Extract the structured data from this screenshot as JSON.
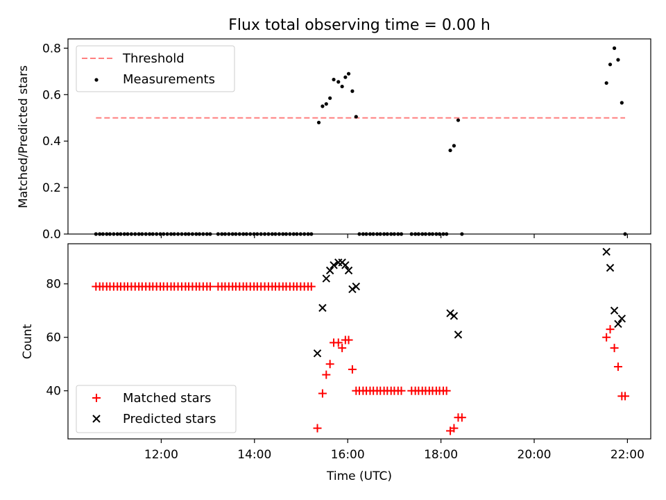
{
  "chart_data": {
    "title": "Flux total observing time = 0.00 h",
    "xlabel": "Time (UTC)",
    "x_ticks": [
      "12:00",
      "14:00",
      "16:00",
      "18:00",
      "20:00",
      "22:00"
    ],
    "x_tick_hours": [
      12,
      14,
      16,
      18,
      20,
      22
    ],
    "xlim_hours": [
      10.0,
      22.5
    ],
    "panels": [
      {
        "id": "ratio",
        "type": "scatter",
        "ylabel": "Matched/Predicted stars",
        "ylim": [
          0,
          0.84
        ],
        "yticks": [
          0.0,
          0.2,
          0.4,
          0.6,
          0.8
        ],
        "ytick_labels": [
          "0.0",
          "0.2",
          "0.4",
          "0.6",
          "0.8"
        ],
        "legend": {
          "placement": "top-left",
          "entries": [
            "Threshold",
            "Measurements"
          ]
        },
        "threshold": {
          "name": "Threshold",
          "value": 0.5,
          "x_range_hours": [
            10.6,
            21.95
          ],
          "color": "#ff7f7f"
        },
        "series": [
          {
            "name": "Measurements",
            "color": "#000000",
            "marker": "dot",
            "x_hours": [
              10.6,
              10.68,
              10.75,
              10.83,
              10.9,
              10.98,
              11.06,
              11.13,
              11.21,
              11.28,
              11.36,
              11.44,
              11.52,
              11.59,
              11.67,
              11.75,
              11.82,
              11.9,
              11.98,
              12.05,
              12.13,
              12.21,
              12.28,
              12.36,
              12.44,
              12.52,
              12.59,
              12.67,
              12.75,
              12.82,
              12.9,
              12.98,
              13.05,
              13.22,
              13.3,
              13.37,
              13.45,
              13.53,
              13.6,
              13.68,
              13.76,
              13.83,
              13.91,
              13.99,
              14.06,
              14.14,
              14.22,
              14.3,
              14.38,
              14.45,
              14.53,
              14.61,
              14.68,
              14.76,
              14.84,
              14.91,
              14.99,
              15.07,
              15.15,
              15.22,
              15.38,
              15.46,
              15.54,
              15.62,
              15.7,
              15.8,
              15.88,
              15.95,
              16.02,
              16.1,
              16.18,
              16.25,
              16.33,
              16.4,
              16.48,
              16.55,
              16.63,
              16.7,
              16.78,
              16.85,
              16.93,
              17.0,
              17.08,
              17.15,
              17.37,
              17.45,
              17.52,
              17.6,
              17.67,
              17.75,
              17.82,
              17.9,
              17.97,
              18.05,
              18.12,
              18.2,
              18.28,
              18.37,
              18.45,
              21.55,
              21.63,
              21.72,
              21.8,
              21.88,
              21.95
            ],
            "y": [
              0,
              0,
              0,
              0,
              0,
              0,
              0,
              0,
              0,
              0,
              0,
              0,
              0,
              0,
              0,
              0,
              0,
              0,
              0,
              0,
              0,
              0,
              0,
              0,
              0,
              0,
              0,
              0,
              0,
              0,
              0,
              0,
              0,
              0,
              0,
              0,
              0,
              0,
              0,
              0,
              0,
              0,
              0,
              0,
              0,
              0,
              0,
              0,
              0,
              0,
              0,
              0,
              0,
              0,
              0,
              0,
              0,
              0,
              0,
              0,
              0.48,
              0.55,
              0.56,
              0.585,
              0.665,
              0.655,
              0.635,
              0.675,
              0.69,
              0.615,
              0.505,
              0,
              0,
              0,
              0,
              0,
              0,
              0,
              0,
              0,
              0,
              0,
              0,
              0,
              0,
              0,
              0,
              0,
              0,
              0,
              0,
              0,
              0,
              0,
              0,
              0.36,
              0.38,
              0.49,
              0,
              0.65,
              0.73,
              0.8,
              0.75,
              0.565,
              0
            ]
          }
        ]
      },
      {
        "id": "count",
        "type": "scatter",
        "ylabel": "Count",
        "ylim": [
          22,
          95
        ],
        "yticks": [
          40,
          60,
          80
        ],
        "ytick_labels": [
          "40",
          "60",
          "80"
        ],
        "legend": {
          "placement": "bottom-left",
          "entries": [
            "Matched stars",
            "Predicted stars"
          ]
        },
        "series": [
          {
            "name": "Matched stars",
            "color": "#ff0000",
            "marker": "plus",
            "x_hours": [
              10.6,
              10.68,
              10.75,
              10.83,
              10.9,
              10.98,
              11.06,
              11.13,
              11.21,
              11.28,
              11.36,
              11.44,
              11.52,
              11.59,
              11.67,
              11.75,
              11.82,
              11.9,
              11.98,
              12.05,
              12.13,
              12.21,
              12.28,
              12.36,
              12.44,
              12.52,
              12.59,
              12.67,
              12.75,
              12.82,
              12.9,
              12.98,
              13.05,
              13.22,
              13.3,
              13.37,
              13.45,
              13.53,
              13.6,
              13.68,
              13.76,
              13.83,
              13.91,
              13.99,
              14.06,
              14.14,
              14.22,
              14.3,
              14.38,
              14.45,
              14.53,
              14.61,
              14.68,
              14.76,
              14.84,
              14.91,
              14.99,
              15.07,
              15.15,
              15.22,
              15.35,
              15.46,
              15.54,
              15.62,
              15.7,
              15.8,
              15.88,
              15.95,
              16.02,
              16.1,
              16.18,
              16.25,
              16.33,
              16.4,
              16.48,
              16.55,
              16.63,
              16.7,
              16.78,
              16.85,
              16.93,
              17.0,
              17.08,
              17.15,
              17.37,
              17.45,
              17.52,
              17.6,
              17.67,
              17.75,
              17.82,
              17.9,
              17.97,
              18.05,
              18.12,
              18.2,
              18.28,
              18.37,
              18.45,
              21.55,
              21.63,
              21.72,
              21.8,
              21.88,
              21.95
            ],
            "y": [
              79,
              79,
              79,
              79,
              79,
              79,
              79,
              79,
              79,
              79,
              79,
              79,
              79,
              79,
              79,
              79,
              79,
              79,
              79,
              79,
              79,
              79,
              79,
              79,
              79,
              79,
              79,
              79,
              79,
              79,
              79,
              79,
              79,
              79,
              79,
              79,
              79,
              79,
              79,
              79,
              79,
              79,
              79,
              79,
              79,
              79,
              79,
              79,
              79,
              79,
              79,
              79,
              79,
              79,
              79,
              79,
              79,
              79,
              79,
              79,
              26,
              39,
              46,
              50,
              58,
              58,
              56,
              59,
              59,
              48,
              40,
              40,
              40,
              40,
              40,
              40,
              40,
              40,
              40,
              40,
              40,
              40,
              40,
              40,
              40,
              40,
              40,
              40,
              40,
              40,
              40,
              40,
              40,
              40,
              40,
              25,
              26,
              30,
              30,
              60,
              63,
              56,
              49,
              38,
              38
            ]
          },
          {
            "name": "Predicted stars",
            "color": "#000000",
            "marker": "cross",
            "x_hours": [
              15.35,
              15.46,
              15.54,
              15.62,
              15.7,
              15.8,
              15.88,
              15.95,
              16.02,
              16.1,
              16.18,
              18.2,
              18.28,
              18.37,
              21.55,
              21.63,
              21.72,
              21.8,
              21.88
            ],
            "y": [
              54,
              71,
              82,
              85,
              87,
              88,
              88,
              87,
              85,
              78,
              79,
              69,
              68,
              61,
              92,
              86,
              70,
              65,
              67
            ]
          }
        ]
      }
    ]
  }
}
